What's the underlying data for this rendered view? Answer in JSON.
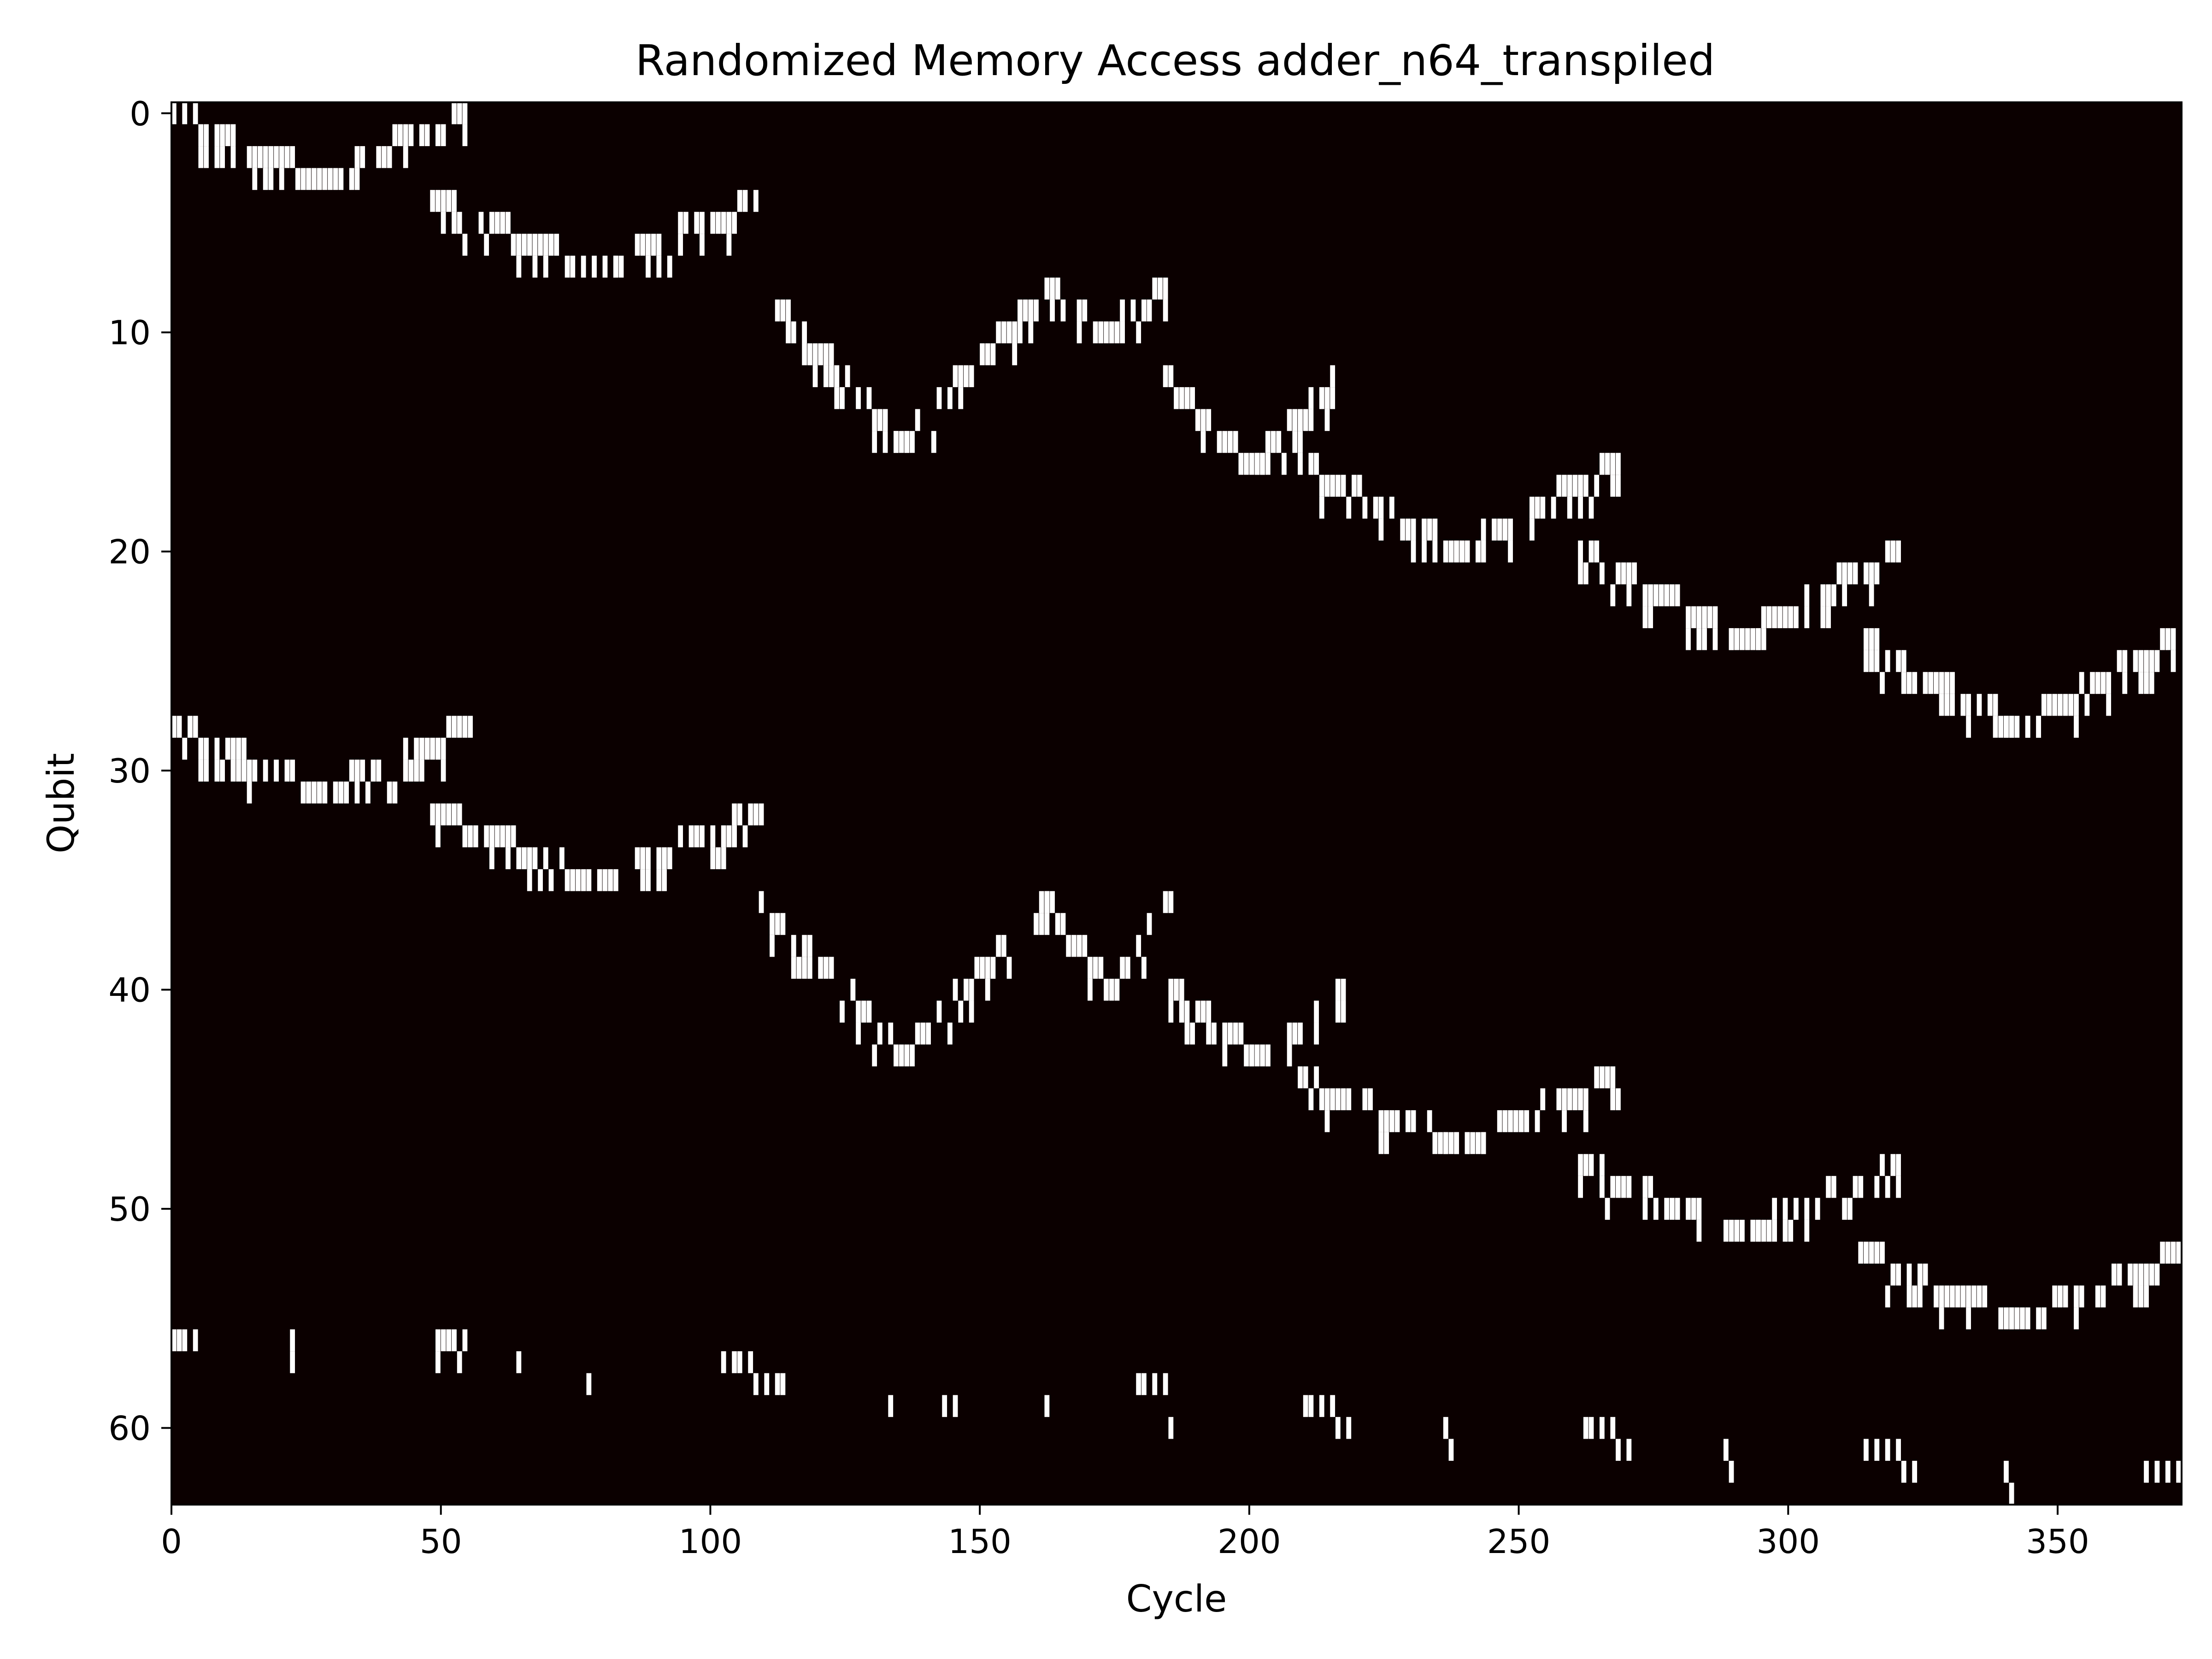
{
  "chart_data": {
    "type": "heatmap",
    "title": "Randomized Memory Access adder_n64_transpiled",
    "xlabel": "Cycle",
    "ylabel": "Qubit",
    "xlim": [
      0,
      373
    ],
    "ylim": [
      64,
      0
    ],
    "x_ticks": [
      0,
      50,
      100,
      150,
      200,
      250,
      300,
      350
    ],
    "y_ticks": [
      0,
      10,
      20,
      30,
      40,
      50,
      60
    ],
    "grid": false,
    "legend": "none",
    "colors": {
      "background": "#0b0000",
      "active": "#ffffff"
    },
    "access_pattern": {
      "description_units": "qubit index vs cycle index; each band is a V-shaped sweep down then back up",
      "bands": [
        {
          "cycle_start": 0,
          "cycle_end": 54,
          "qubit_top": 0,
          "qubit_bottom": 3
        },
        {
          "cycle_start": 48,
          "cycle_end": 108,
          "qubit_top": 4,
          "qubit_bottom": 7
        },
        {
          "cycle_start": 109,
          "cycle_end": 162,
          "qubit_top": 8,
          "qubit_bottom": 15
        },
        {
          "cycle_start": 162,
          "cycle_end": 184,
          "qubit_top": 8,
          "qubit_bottom": 10
        },
        {
          "cycle_start": 184,
          "cycle_end": 216,
          "qubit_top": 12,
          "qubit_bottom": 16
        },
        {
          "cycle_start": 209,
          "cycle_end": 268,
          "qubit_top": 16,
          "qubit_bottom": 20
        },
        {
          "cycle_start": 261,
          "cycle_end": 320,
          "qubit_top": 20,
          "qubit_bottom": 24
        },
        {
          "cycle_start": 313,
          "cycle_end": 372,
          "qubit_top": 24,
          "qubit_bottom": 28
        },
        {
          "cycle_start": 0,
          "cycle_end": 55,
          "qubit_top": 28,
          "qubit_bottom": 31
        },
        {
          "cycle_start": 48,
          "cycle_end": 109,
          "qubit_top": 32,
          "qubit_bottom": 35
        },
        {
          "cycle_start": 109,
          "cycle_end": 162,
          "qubit_top": 36,
          "qubit_bottom": 43
        },
        {
          "cycle_start": 162,
          "cycle_end": 185,
          "qubit_top": 36,
          "qubit_bottom": 40
        },
        {
          "cycle_start": 185,
          "cycle_end": 217,
          "qubit_top": 40,
          "qubit_bottom": 43
        },
        {
          "cycle_start": 209,
          "cycle_end": 268,
          "qubit_top": 44,
          "qubit_bottom": 47
        },
        {
          "cycle_start": 261,
          "cycle_end": 320,
          "qubit_top": 48,
          "qubit_bottom": 51
        },
        {
          "cycle_start": 313,
          "cycle_end": 372,
          "qubit_top": 52,
          "qubit_bottom": 55
        }
      ],
      "scattered_rows": [
        56,
        57,
        58,
        59,
        60,
        61,
        62,
        63
      ]
    }
  }
}
